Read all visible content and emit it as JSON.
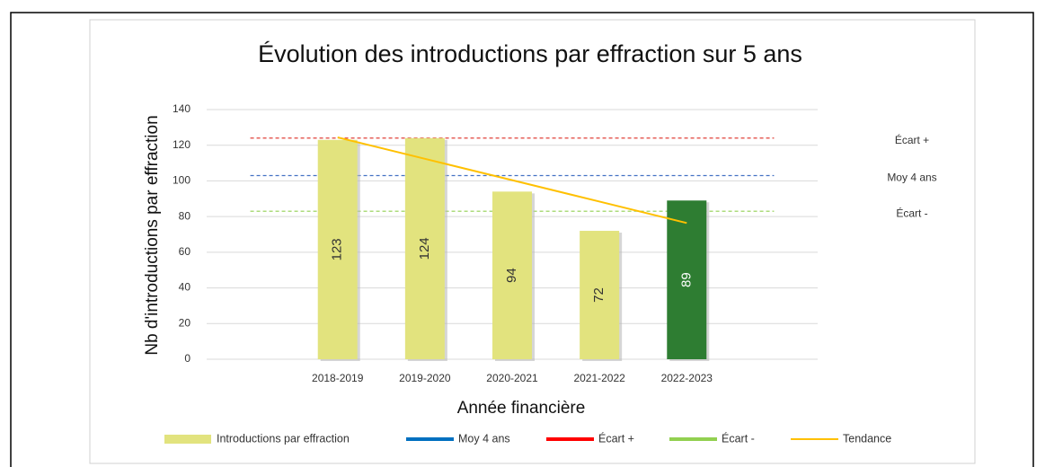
{
  "chart_data": {
    "type": "bar",
    "title": "Évolution des introductions par effraction sur 5 ans",
    "x_label": "Année financière",
    "y_label": "Nb d'introductions par effraction",
    "categories": [
      null,
      "2018-2019",
      "2019-2020",
      "2020-2021",
      "2021-2022",
      "2022-2023",
      null
    ],
    "ylim": [
      0,
      140
    ],
    "yticks": [
      0,
      20,
      40,
      60,
      80,
      100,
      120,
      140
    ],
    "grid": true,
    "series": [
      {
        "name": "Introductions par effraction",
        "type": "bar",
        "color": "#e2e37e",
        "colors": [
          null,
          "#e2e37e",
          "#e2e37e",
          "#e2e37e",
          "#e2e37e",
          "#2e7d32",
          null
        ],
        "values": [
          null,
          123,
          124,
          94,
          72,
          89,
          null
        ]
      },
      {
        "name": "Tendance",
        "type": "line",
        "color": "#ffc000",
        "values": [
          null,
          124.4,
          112.4,
          100.4,
          88.4,
          76.4,
          null
        ]
      }
    ],
    "reference_lines": [
      {
        "name": "Moy 4 ans",
        "color": "#4472c4",
        "legend_color": "#0070c0",
        "value": 103
      },
      {
        "name": "Écart +",
        "color": "#e0413a",
        "legend_color": "#ff0000",
        "value": 124
      },
      {
        "name": "Écart -",
        "color": "#92d050",
        "legend_color": "#92d050",
        "value": 83
      }
    ]
  }
}
